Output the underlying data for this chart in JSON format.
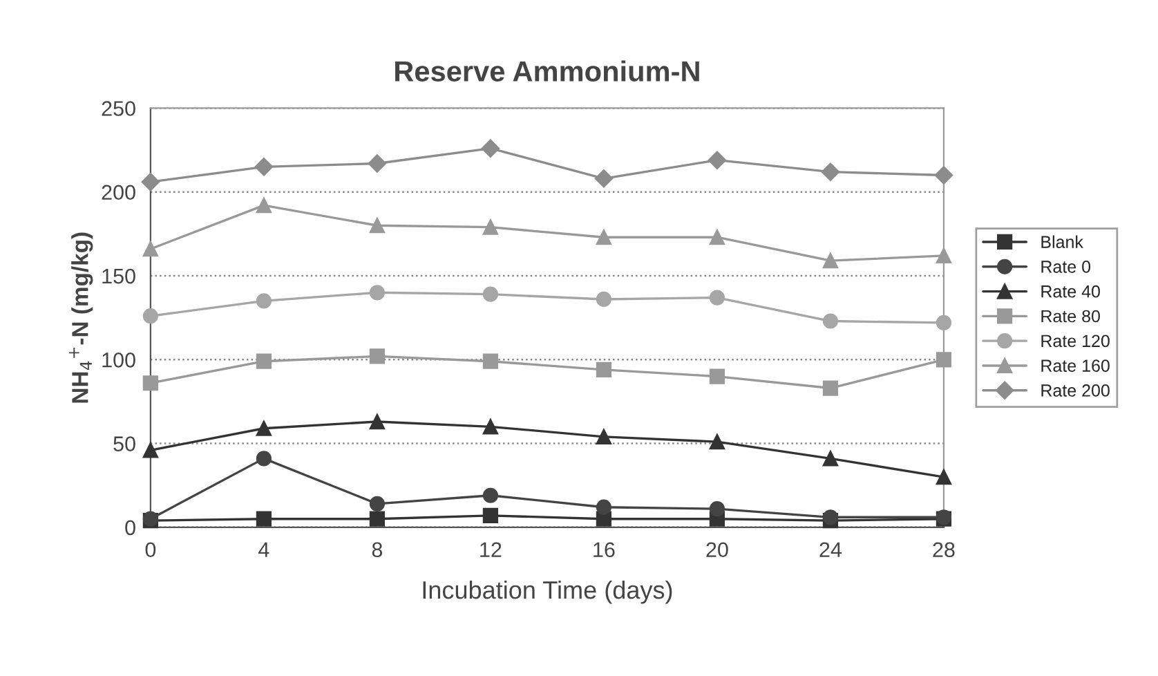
{
  "chart_data": {
    "type": "line",
    "title": "Reserve Ammonium-N",
    "xlabel": "Incubation Time (days)",
    "ylabel": "NH$_{4}$$^{+}$-N (mg/kg)",
    "x": [
      0,
      4,
      8,
      12,
      16,
      20,
      24,
      28
    ],
    "xlim": [
      0,
      28
    ],
    "xticks": [
      0,
      4,
      8,
      12,
      16,
      20,
      24,
      28
    ],
    "ylim": [
      0,
      250
    ],
    "yticks": [
      0,
      50,
      100,
      150,
      200,
      250
    ],
    "grid": "y",
    "legend": "right",
    "series": [
      {
        "name": "Blank",
        "color": "#333333",
        "marker": "square",
        "values": [
          4,
          5,
          5,
          7,
          5,
          5,
          4,
          5
        ]
      },
      {
        "name": "Rate 0",
        "color": "#444444",
        "marker": "circle",
        "values": [
          5,
          41,
          14,
          19,
          12,
          11,
          6,
          6
        ]
      },
      {
        "name": "Rate 40",
        "color": "#333333",
        "marker": "triangle",
        "values": [
          46,
          59,
          63,
          60,
          54,
          51,
          41,
          30
        ]
      },
      {
        "name": "Rate 80",
        "color": "#999999",
        "marker": "square",
        "values": [
          86,
          99,
          102,
          99,
          94,
          90,
          83,
          100
        ]
      },
      {
        "name": "Rate 120",
        "color": "#a6a6a6",
        "marker": "circle",
        "values": [
          126,
          135,
          140,
          139,
          136,
          137,
          123,
          122
        ]
      },
      {
        "name": "Rate 160",
        "color": "#999999",
        "marker": "triangle",
        "values": [
          166,
          192,
          180,
          179,
          173,
          173,
          159,
          162
        ]
      },
      {
        "name": "Rate 200",
        "color": "#8c8c8c",
        "marker": "diamond",
        "values": [
          206,
          215,
          217,
          226,
          208,
          219,
          212,
          210
        ]
      }
    ]
  }
}
